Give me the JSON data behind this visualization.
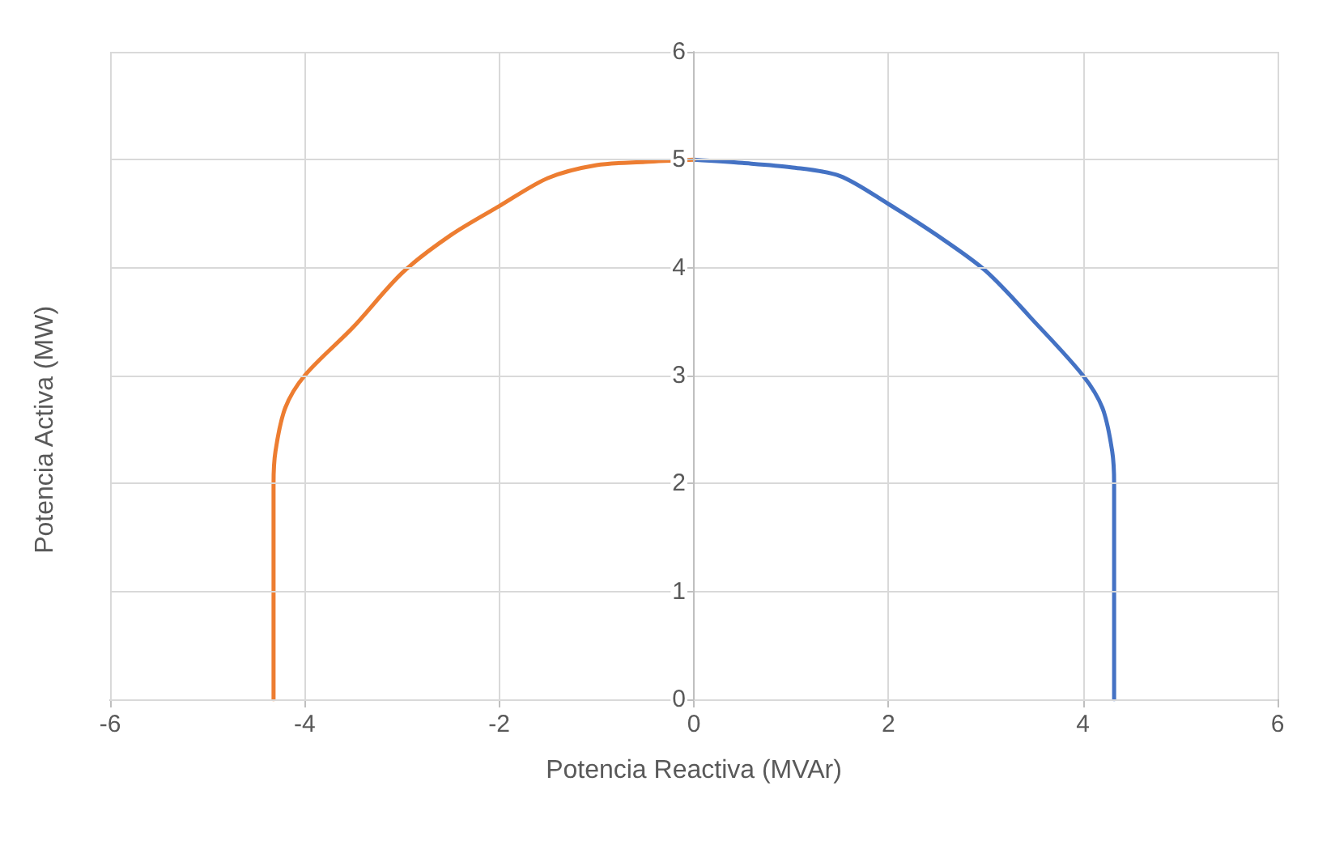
{
  "chart_data": {
    "type": "line",
    "xlabel": "Potencia Reactiva (MVAr)",
    "ylabel": "Potencia Activa (MW)",
    "xlim": [
      -6,
      6
    ],
    "xticks": [
      -6,
      -4,
      -2,
      0,
      2,
      4,
      6
    ],
    "ylim": [
      0,
      6
    ],
    "yticks": [
      0,
      1,
      2,
      3,
      4,
      5,
      6
    ],
    "grid": true,
    "marker": "none",
    "line_style": "solid",
    "series": [
      {
        "color": "#4472c4",
        "x": [
          0,
          0.5,
          1,
          1.5,
          2,
          2.5,
          3,
          3.5,
          4,
          4.2,
          4.3,
          4.32,
          4.32
        ],
        "values": [
          5,
          4.97,
          4.93,
          4.85,
          4.59,
          4.3,
          3.97,
          3.5,
          3,
          2.7,
          2.3,
          2,
          0
        ]
      },
      {
        "color": "#ed7d31",
        "x": [
          -4.32,
          -4.32,
          -4.3,
          -4.2,
          -4,
          -3.5,
          -3,
          -2.5,
          -2,
          -1.5,
          -1,
          -0.5,
          0
        ],
        "values": [
          0,
          2,
          2.3,
          2.7,
          3,
          3.45,
          3.95,
          4.3,
          4.57,
          4.83,
          4.95,
          4.98,
          5
        ]
      }
    ]
  }
}
